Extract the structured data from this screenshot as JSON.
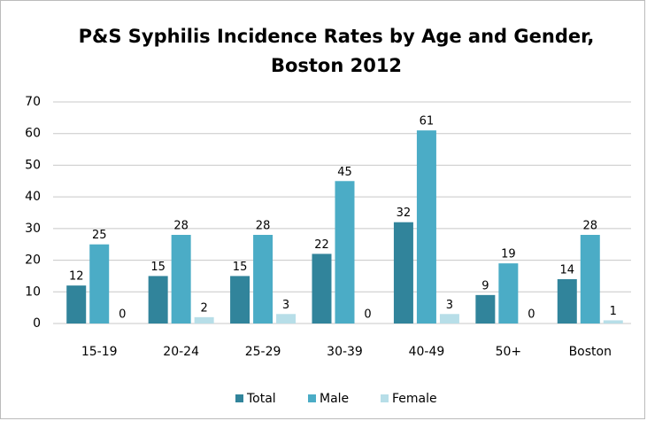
{
  "chart_data": {
    "type": "bar",
    "title": [
      "P&S Syphilis Incidence Rates by Age and Gender,",
      "Boston 2012"
    ],
    "categories": [
      "15-19",
      "20-24",
      "25-29",
      "30-39",
      "40-49",
      "50+",
      "Boston"
    ],
    "series": [
      {
        "name": "Total",
        "color": "#31849b",
        "values": [
          12,
          15,
          15,
          22,
          32,
          9,
          14
        ]
      },
      {
        "name": "Male",
        "color": "#4bacc6",
        "values": [
          25,
          28,
          28,
          45,
          61,
          19,
          28
        ]
      },
      {
        "name": "Female",
        "color": "#b7dee8",
        "values": [
          0,
          2,
          3,
          0,
          3,
          0,
          1
        ]
      }
    ],
    "ylim": [
      0,
      70
    ],
    "yticks": [
      0,
      10,
      20,
      30,
      40,
      50,
      60,
      70
    ],
    "grid": true,
    "legend": "bottom"
  }
}
